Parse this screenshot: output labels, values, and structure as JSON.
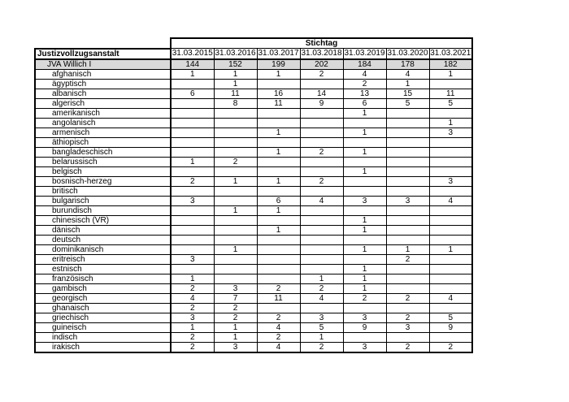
{
  "header": {
    "group_label": "Stichtag",
    "first_column": "Justizvollzugsanstalt",
    "dates": [
      "31.03.2015",
      "31.03.2016",
      "31.03.2017",
      "31.03.2018",
      "31.03.2019",
      "31.03.2020",
      "31.03.2021"
    ]
  },
  "total": {
    "name": "JVA Willich I",
    "values": [
      "144",
      "152",
      "199",
      "202",
      "184",
      "178",
      "182"
    ]
  },
  "rows": [
    {
      "name": "afghanisch",
      "values": [
        "1",
        "1",
        "1",
        "2",
        "4",
        "4",
        "1"
      ]
    },
    {
      "name": "ägyptisch",
      "values": [
        "",
        "1",
        "",
        "",
        "2",
        "1",
        ""
      ]
    },
    {
      "name": "albanisch",
      "values": [
        "6",
        "11",
        "16",
        "14",
        "13",
        "15",
        "11"
      ]
    },
    {
      "name": "algerisch",
      "values": [
        "",
        "8",
        "11",
        "9",
        "6",
        "5",
        "5"
      ]
    },
    {
      "name": "amerikanisch",
      "values": [
        "",
        "",
        "",
        "",
        "1",
        "",
        ""
      ]
    },
    {
      "name": "angolanisch",
      "values": [
        "",
        "",
        "",
        "",
        "",
        "",
        "1"
      ]
    },
    {
      "name": "armenisch",
      "values": [
        "",
        "",
        "1",
        "",
        "1",
        "",
        "3"
      ]
    },
    {
      "name": "äthiopisch",
      "values": [
        "",
        "",
        "",
        "",
        "",
        "",
        ""
      ]
    },
    {
      "name": "bangladeschisch",
      "values": [
        "",
        "",
        "1",
        "2",
        "1",
        "",
        ""
      ]
    },
    {
      "name": "belarussisch",
      "values": [
        "1",
        "2",
        "",
        "",
        "",
        "",
        ""
      ]
    },
    {
      "name": "belgisch",
      "values": [
        "",
        "",
        "",
        "",
        "1",
        "",
        ""
      ]
    },
    {
      "name": "bosnisch-herzeg",
      "values": [
        "2",
        "1",
        "1",
        "2",
        "",
        "",
        "3"
      ]
    },
    {
      "name": "britisch",
      "values": [
        "",
        "",
        "",
        "",
        "",
        "",
        ""
      ]
    },
    {
      "name": "bulgarisch",
      "values": [
        "3",
        "",
        "6",
        "4",
        "3",
        "3",
        "4"
      ]
    },
    {
      "name": "burundisch",
      "values": [
        "",
        "1",
        "1",
        "",
        "",
        "",
        ""
      ]
    },
    {
      "name": "chinesisch (VR)",
      "values": [
        "",
        "",
        "",
        "",
        "1",
        "",
        ""
      ]
    },
    {
      "name": "dänisch",
      "values": [
        "",
        "",
        "1",
        "",
        "1",
        "",
        ""
      ]
    },
    {
      "name": "deutsch",
      "values": [
        "",
        "",
        "",
        "",
        "",
        "",
        ""
      ]
    },
    {
      "name": "dominikanisch",
      "values": [
        "",
        "1",
        "",
        "",
        "1",
        "1",
        "1"
      ]
    },
    {
      "name": "eritreisch",
      "values": [
        "3",
        "",
        "",
        "",
        "",
        "2",
        ""
      ]
    },
    {
      "name": "estnisch",
      "values": [
        "",
        "",
        "",
        "",
        "1",
        "",
        ""
      ]
    },
    {
      "name": "französisch",
      "values": [
        "1",
        "",
        "",
        "1",
        "1",
        "",
        ""
      ]
    },
    {
      "name": "gambisch",
      "values": [
        "2",
        "3",
        "2",
        "2",
        "1",
        "",
        ""
      ]
    },
    {
      "name": "georgisch",
      "values": [
        "4",
        "7",
        "11",
        "4",
        "2",
        "2",
        "4"
      ]
    },
    {
      "name": "ghanaisch",
      "values": [
        "2",
        "2",
        "",
        "",
        "",
        "",
        ""
      ]
    },
    {
      "name": "griechisch",
      "values": [
        "3",
        "2",
        "2",
        "3",
        "3",
        "2",
        "5"
      ]
    },
    {
      "name": "guineisch",
      "values": [
        "1",
        "1",
        "4",
        "5",
        "9",
        "3",
        "9"
      ]
    },
    {
      "name": "indisch",
      "values": [
        "2",
        "1",
        "2",
        "1",
        "",
        "",
        ""
      ]
    },
    {
      "name": "irakisch",
      "values": [
        "2",
        "3",
        "4",
        "2",
        "3",
        "2",
        "2"
      ]
    }
  ]
}
